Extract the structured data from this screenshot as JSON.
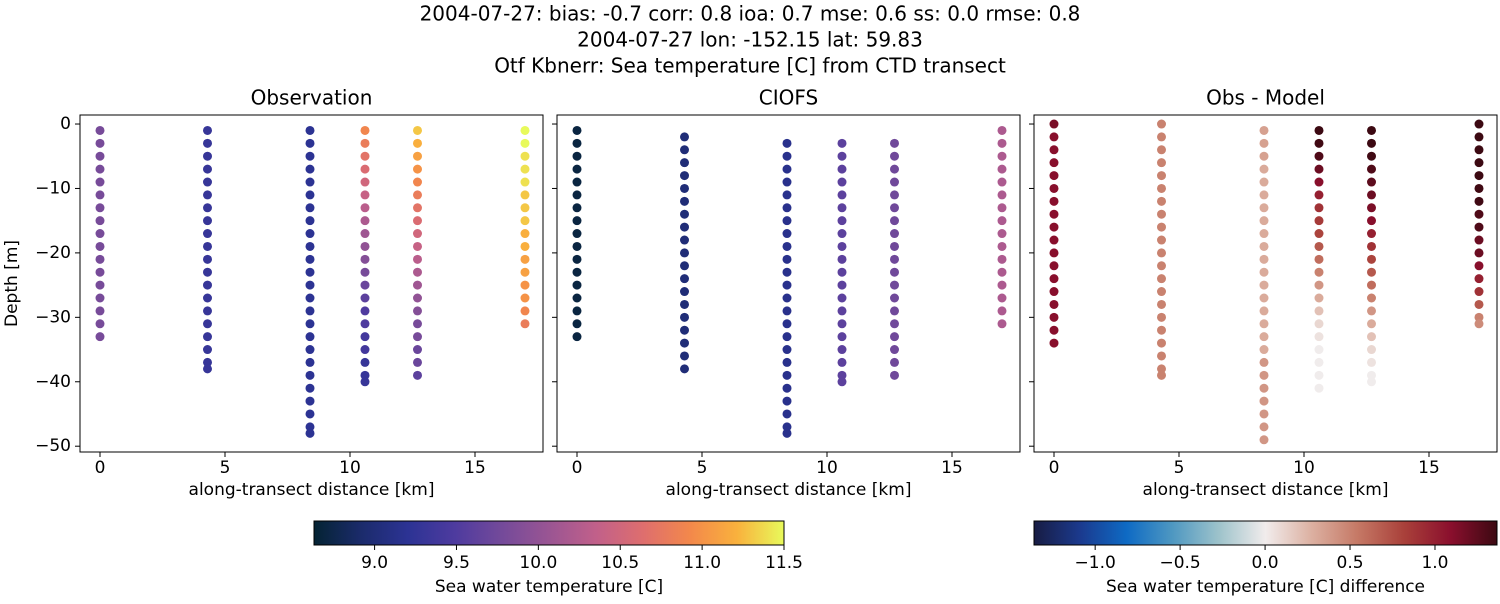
{
  "suptitle": [
    "2004-07-27: bias: -0.7  corr: 0.8  ioa: 0.7  mse: 0.6  ss: 0.0  rmse: 0.8",
    "2004-07-27 lon: -152.15 lat: 59.83",
    "Otf Kbnerr: Sea temperature [C] from CTD transect"
  ],
  "chart_data": [
    {
      "type": "scatter",
      "title": "Observation",
      "xlabel": "along-transect distance [km]",
      "ylabel": "Depth [m]",
      "colorbar": 0,
      "show_ytick_labels": true,
      "xlim": [
        -0.8,
        17.72
      ],
      "ylim": [
        -50.9,
        1.4
      ],
      "xticks": [
        0,
        5,
        10,
        15
      ],
      "yticks": [
        0,
        {
          "value": -10,
          "label": "−10"
        },
        {
          "value": -20,
          "label": "−20"
        },
        {
          "value": -30,
          "label": "−30"
        },
        {
          "value": -40,
          "label": "−40"
        },
        {
          "value": -50,
          "label": "−50"
        }
      ],
      "profiles": [
        {
          "x": 0,
          "depths": [
            -1,
            -3,
            -5,
            -7,
            -9,
            -11,
            -13,
            -15,
            -17,
            -19,
            -21,
            -23,
            -25,
            -27,
            -29,
            -31,
            -33
          ],
          "values": [
            9.8,
            9.8,
            9.8,
            9.8,
            9.8,
            9.8,
            9.8,
            9.8,
            9.8,
            9.8,
            9.8,
            9.8,
            9.8,
            9.8,
            9.8,
            9.8,
            9.8
          ]
        },
        {
          "x": 4.3,
          "depths": [
            -1,
            -3,
            -5,
            -7,
            -9,
            -11,
            -13,
            -15,
            -17,
            -19,
            -21,
            -23,
            -25,
            -27,
            -29,
            -31,
            -33,
            -35,
            -37,
            -38
          ],
          "values": [
            9.3,
            9.3,
            9.3,
            9.3,
            9.3,
            9.3,
            9.3,
            9.3,
            9.3,
            9.3,
            9.3,
            9.3,
            9.3,
            9.3,
            9.3,
            9.3,
            9.3,
            9.3,
            9.3,
            9.3
          ]
        },
        {
          "x": 8.4,
          "depths": [
            -1,
            -3,
            -5,
            -7,
            -9,
            -11,
            -13,
            -15,
            -17,
            -19,
            -21,
            -23,
            -25,
            -27,
            -29,
            -31,
            -33,
            -35,
            -37,
            -39,
            -41,
            -43,
            -45,
            -47,
            -48
          ],
          "values": [
            9.2,
            9.2,
            9.2,
            9.2,
            9.2,
            9.2,
            9.2,
            9.2,
            9.2,
            9.2,
            9.2,
            9.2,
            9.2,
            9.2,
            9.2,
            9.2,
            9.2,
            9.2,
            9.2,
            9.2,
            9.2,
            9.2,
            9.2,
            9.2,
            9.2
          ]
        },
        {
          "x": 10.6,
          "depths": [
            -1,
            -3,
            -5,
            -7,
            -9,
            -11,
            -13,
            -15,
            -17,
            -19,
            -21,
            -23,
            -25,
            -27,
            -29,
            -31,
            -33,
            -35,
            -37,
            -39,
            -40
          ],
          "values": [
            10.9,
            10.8,
            10.7,
            10.6,
            10.5,
            10.4,
            10.3,
            10.2,
            10.1,
            10.0,
            9.9,
            9.8,
            9.7,
            9.6,
            9.5,
            9.5,
            9.4,
            9.4,
            9.3,
            9.3,
            9.3
          ]
        },
        {
          "x": 12.7,
          "depths": [
            -1,
            -3,
            -5,
            -7,
            -9,
            -11,
            -13,
            -15,
            -17,
            -19,
            -21,
            -23,
            -25,
            -27,
            -29,
            -31,
            -33,
            -35,
            -37,
            -39
          ],
          "values": [
            11.3,
            11.2,
            11.1,
            11.0,
            10.9,
            10.8,
            10.7,
            10.6,
            10.5,
            10.4,
            10.3,
            10.2,
            10.1,
            10.0,
            9.9,
            9.8,
            9.8,
            9.7,
            9.7,
            9.6
          ]
        },
        {
          "x": 17.0,
          "depths": [
            -1,
            -3,
            -5,
            -7,
            -9,
            -11,
            -13,
            -15,
            -17,
            -19,
            -21,
            -23,
            -25,
            -27,
            -29,
            -31
          ],
          "values": [
            11.5,
            11.5,
            11.4,
            11.4,
            11.4,
            11.3,
            11.3,
            11.3,
            11.2,
            11.2,
            11.1,
            11.1,
            11.0,
            11.0,
            10.9,
            10.8
          ]
        }
      ]
    },
    {
      "type": "scatter",
      "title": "CIOFS",
      "xlabel": "along-transect distance [km]",
      "colorbar": 0,
      "show_ytick_labels": false,
      "xlim": [
        -0.8,
        17.72
      ],
      "ylim": [
        -50.9,
        1.4
      ],
      "xticks": [
        0,
        5,
        10,
        15
      ],
      "yticks": [
        0,
        -10,
        -20,
        -30,
        -40,
        -50
      ],
      "profiles": [
        {
          "x": 0,
          "depths": [
            -1,
            -3,
            -5,
            -7,
            -9,
            -11,
            -13,
            -15,
            -17,
            -19,
            -21,
            -23,
            -25,
            -27,
            -29,
            -31,
            -33
          ],
          "values": [
            8.7,
            8.7,
            8.7,
            8.7,
            8.7,
            8.7,
            8.7,
            8.7,
            8.7,
            8.7,
            8.7,
            8.7,
            8.7,
            8.7,
            8.7,
            8.7,
            8.7
          ]
        },
        {
          "x": 4.3,
          "depths": [
            -2,
            -4,
            -6,
            -8,
            -10,
            -12,
            -14,
            -16,
            -18,
            -20,
            -22,
            -24,
            -26,
            -28,
            -30,
            -32,
            -34,
            -36,
            -38
          ],
          "values": [
            9.0,
            9.0,
            9.0,
            9.0,
            9.0,
            9.0,
            9.0,
            9.0,
            9.0,
            9.0,
            9.0,
            9.0,
            9.0,
            9.0,
            9.0,
            9.0,
            9.0,
            9.0,
            9.0
          ]
        },
        {
          "x": 8.4,
          "depths": [
            -3,
            -5,
            -7,
            -9,
            -11,
            -13,
            -15,
            -17,
            -19,
            -21,
            -23,
            -25,
            -27,
            -29,
            -31,
            -33,
            -35,
            -37,
            -39,
            -41,
            -43,
            -45,
            -47,
            -48
          ],
          "values": [
            9.15,
            9.15,
            9.15,
            9.15,
            9.15,
            9.15,
            9.15,
            9.15,
            9.15,
            9.15,
            9.15,
            9.15,
            9.15,
            9.15,
            9.15,
            9.15,
            9.15,
            9.15,
            9.15,
            9.15,
            9.15,
            9.15,
            9.15,
            9.15
          ]
        },
        {
          "x": 10.6,
          "depths": [
            -3,
            -5,
            -7,
            -9,
            -11,
            -13,
            -15,
            -17,
            -19,
            -21,
            -23,
            -25,
            -27,
            -29,
            -31,
            -33,
            -35,
            -37,
            -39,
            -40
          ],
          "values": [
            9.6,
            9.6,
            9.6,
            9.6,
            9.6,
            9.6,
            9.6,
            9.6,
            9.6,
            9.6,
            9.6,
            9.6,
            9.6,
            9.6,
            9.6,
            9.6,
            9.6,
            9.6,
            9.6,
            9.6
          ]
        },
        {
          "x": 12.7,
          "depths": [
            -3,
            -5,
            -7,
            -9,
            -11,
            -13,
            -15,
            -17,
            -19,
            -21,
            -23,
            -25,
            -27,
            -29,
            -31,
            -33,
            -35,
            -37,
            -39
          ],
          "values": [
            9.75,
            9.75,
            9.75,
            9.75,
            9.75,
            9.75,
            9.75,
            9.75,
            9.75,
            9.75,
            9.75,
            9.75,
            9.75,
            9.75,
            9.75,
            9.75,
            9.75,
            9.75,
            9.75
          ]
        },
        {
          "x": 17.0,
          "depths": [
            -1,
            -3,
            -5,
            -7,
            -9,
            -11,
            -13,
            -15,
            -17,
            -19,
            -21,
            -23,
            -25,
            -27,
            -29,
            -31
          ],
          "values": [
            10.2,
            10.2,
            10.2,
            10.2,
            10.2,
            10.2,
            10.2,
            10.2,
            10.2,
            10.2,
            10.2,
            10.2,
            10.2,
            10.2,
            10.2,
            10.2
          ]
        }
      ]
    },
    {
      "type": "scatter",
      "title": "Obs - Model",
      "xlabel": "along-transect distance [km]",
      "colorbar": 1,
      "show_ytick_labels": false,
      "xlim": [
        -0.8,
        17.72
      ],
      "ylim": [
        -50.9,
        1.4
      ],
      "xticks": [
        0,
        5,
        10,
        15
      ],
      "yticks": [
        0,
        -10,
        -20,
        -30,
        -40,
        -50
      ],
      "profiles": [
        {
          "x": 0,
          "depths": [
            0,
            -2,
            -4,
            -6,
            -8,
            -10,
            -12,
            -14,
            -16,
            -18,
            -20,
            -22,
            -24,
            -26,
            -28,
            -30,
            -32,
            -34
          ],
          "values": [
            1.15,
            1.1,
            1.1,
            1.1,
            1.1,
            1.1,
            1.1,
            1.1,
            1.1,
            1.1,
            1.1,
            1.1,
            1.1,
            1.1,
            1.1,
            1.1,
            1.1,
            1.1
          ]
        },
        {
          "x": 4.3,
          "depths": [
            0,
            -2,
            -4,
            -6,
            -8,
            -10,
            -12,
            -14,
            -16,
            -18,
            -20,
            -22,
            -24,
            -26,
            -28,
            -30,
            -32,
            -34,
            -36,
            -38,
            -39
          ],
          "values": [
            0.5,
            0.5,
            0.5,
            0.5,
            0.5,
            0.5,
            0.5,
            0.5,
            0.5,
            0.5,
            0.5,
            0.5,
            0.5,
            0.5,
            0.5,
            0.5,
            0.5,
            0.5,
            0.5,
            0.5,
            0.5
          ]
        },
        {
          "x": 8.4,
          "depths": [
            -1,
            -3,
            -5,
            -7,
            -9,
            -11,
            -13,
            -15,
            -17,
            -19,
            -21,
            -23,
            -25,
            -27,
            -29,
            -31,
            -33,
            -35,
            -37,
            -39,
            -41,
            -43,
            -45,
            -47,
            -49
          ],
          "values": [
            0.35,
            0.35,
            0.35,
            0.3,
            0.3,
            0.3,
            0.3,
            0.3,
            0.3,
            0.3,
            0.3,
            0.3,
            0.3,
            0.3,
            0.3,
            0.3,
            0.3,
            0.3,
            0.4,
            0.4,
            0.4,
            0.4,
            0.4,
            0.4,
            0.4
          ]
        },
        {
          "x": 10.6,
          "depths": [
            -1,
            -3,
            -5,
            -7,
            -9,
            -11,
            -13,
            -15,
            -17,
            -19,
            -21,
            -23,
            -25,
            -27,
            -29,
            -31,
            -33,
            -35,
            -37,
            -39,
            -41
          ],
          "values": [
            1.4,
            1.35,
            1.3,
            1.2,
            1.1,
            1.0,
            0.9,
            0.85,
            0.8,
            0.7,
            0.6,
            0.5,
            0.4,
            0.3,
            0.2,
            0.1,
            0.05,
            0,
            0,
            0,
            0
          ]
        },
        {
          "x": 12.7,
          "depths": [
            -1,
            -3,
            -5,
            -7,
            -9,
            -11,
            -13,
            -15,
            -17,
            -19,
            -21,
            -23,
            -25,
            -27,
            -29,
            -31,
            -33,
            -35,
            -37,
            -39,
            -40
          ],
          "values": [
            1.45,
            1.4,
            1.35,
            1.3,
            1.25,
            1.2,
            1.15,
            1.1,
            1.0,
            0.9,
            0.8,
            0.7,
            0.6,
            0.5,
            0.4,
            0.3,
            0.2,
            0.1,
            0.05,
            0,
            0
          ]
        },
        {
          "x": 17.0,
          "depths": [
            0,
            -2,
            -4,
            -6,
            -8,
            -10,
            -12,
            -14,
            -16,
            -18,
            -20,
            -22,
            -24,
            -26,
            -28,
            -30,
            -31
          ],
          "values": [
            1.45,
            1.45,
            1.4,
            1.4,
            1.4,
            1.35,
            1.35,
            1.3,
            1.3,
            1.2,
            1.2,
            1.1,
            1.0,
            0.9,
            0.7,
            0.5,
            0.45
          ]
        }
      ]
    }
  ],
  "colorbars": [
    {
      "label": "Sea water temperature [C]",
      "lim": [
        8.63,
        11.5
      ],
      "ticks": [
        {
          "value": 9,
          "label": "9.0"
        },
        9.5,
        {
          "value": 10,
          "label": "10.0"
        },
        10.5,
        {
          "value": 11,
          "label": "11.0"
        },
        11.5
      ],
      "colors": [
        "#042333",
        "#1b2b6b",
        "#2c3394",
        "#4e3b9f",
        "#744a9a",
        "#9a5593",
        "#c1608a",
        "#de6e6e",
        "#f3884b",
        "#f9b13d",
        "#e8fa5b"
      ]
    },
    {
      "label": "Sea water temperature [C] difference",
      "lim": [
        -1.36,
        1.365
      ],
      "ticks": [
        {
          "value": -1,
          "label": "−1.0"
        },
        {
          "value": -0.5,
          "label": "−0.5"
        },
        {
          "value": 0,
          "label": "0.0"
        },
        0.5,
        {
          "value": 1,
          "label": "1.0"
        }
      ],
      "colors": [
        "#181c43",
        "#1b3a8e",
        "#0e6ac4",
        "#4f98c1",
        "#9ec3cb",
        "#f1ecec",
        "#dcb0a1",
        "#c57865",
        "#a9403a",
        "#8a0f2d",
        "#3c0912"
      ]
    }
  ]
}
